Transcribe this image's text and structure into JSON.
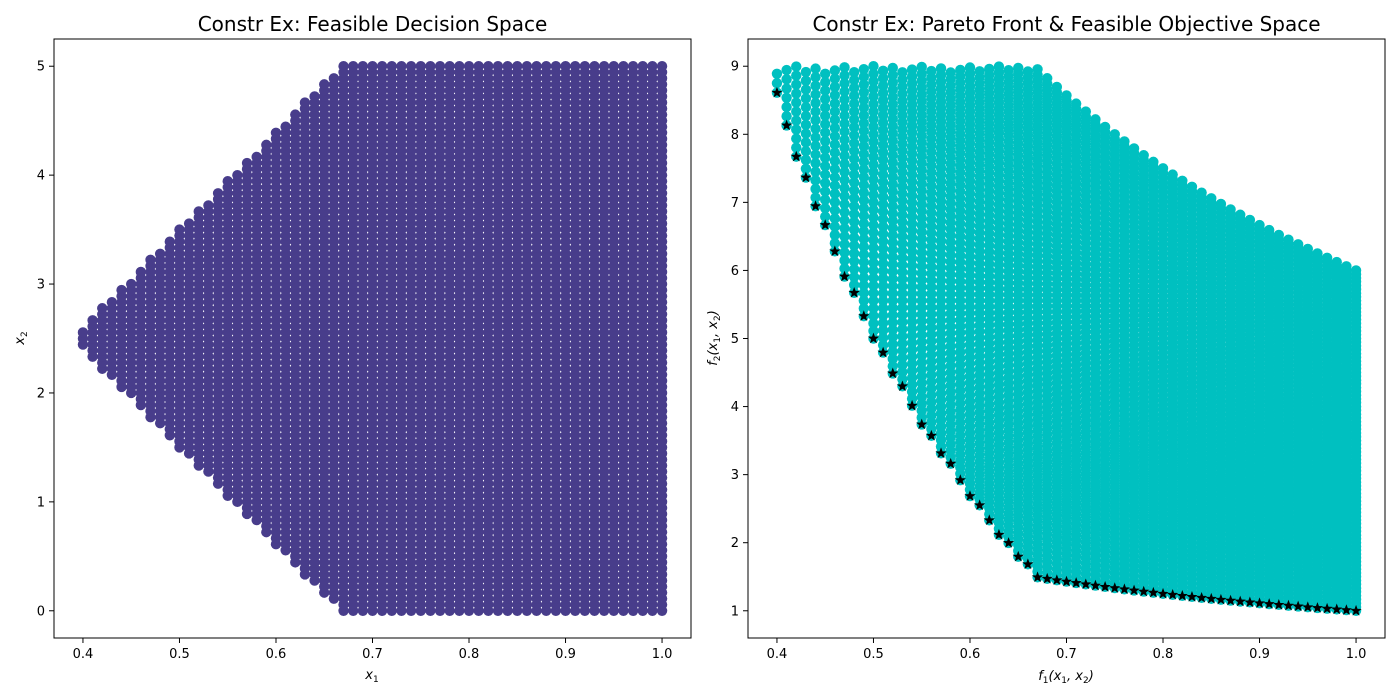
{
  "chart_data": [
    {
      "type": "scatter",
      "title": "Constr Ex: Feasible Decision Space",
      "xlabel": "x1",
      "ylabel": "x2",
      "xlim": [
        0.37,
        1.03
      ],
      "ylim": [
        -0.25,
        5.25
      ],
      "xticks": [
        0.4,
        0.5,
        0.6,
        0.7,
        0.8,
        0.9,
        1.0
      ],
      "xtick_labels": [
        "0.4",
        "0.5",
        "0.6",
        "0.7",
        "0.8",
        "0.9",
        "1.0"
      ],
      "yticks": [
        0,
        1,
        2,
        3,
        4,
        5
      ],
      "ytick_labels": [
        "0",
        "1",
        "2",
        "3",
        "4",
        "5"
      ],
      "grid": false,
      "series": [
        {
          "color": "#483d8b",
          "marker": "circle",
          "x_range": [
            0.4,
            1.0
          ],
          "y_range": [
            0,
            5
          ],
          "x_steps": 61,
          "y_steps": 91,
          "constraints": [
            "x2 + 9*x1 >= 6",
            "-x2 + 9*x1 >= 1"
          ]
        }
      ]
    },
    {
      "type": "scatter",
      "title": "Constr Ex: Pareto Front & Feasible Objective Space",
      "xlabel": "f1(x1, x2)",
      "ylabel": "f2(x1, x2)",
      "xlim": [
        0.37,
        1.03
      ],
      "ylim": [
        0.6,
        9.4
      ],
      "xticks": [
        0.4,
        0.5,
        0.6,
        0.7,
        0.8,
        0.9,
        1.0
      ],
      "xtick_labels": [
        "0.4",
        "0.5",
        "0.6",
        "0.7",
        "0.8",
        "0.9",
        "1.0"
      ],
      "yticks": [
        1,
        2,
        3,
        4,
        5,
        6,
        7,
        8,
        9
      ],
      "ytick_labels": [
        "1",
        "2",
        "3",
        "4",
        "5",
        "6",
        "7",
        "8",
        "9"
      ],
      "grid": false,
      "series": [
        {
          "role": "feasible-objective-space",
          "color": "#00c0c0",
          "marker": "circle",
          "f1": "x1",
          "f2": "(1 + x2) / x1"
        },
        {
          "role": "pareto-front",
          "color": "#000000",
          "marker": "star",
          "f1": "x1",
          "f2": "(1 + max(0, 6 - 9*x1)) / x1"
        }
      ]
    }
  ]
}
